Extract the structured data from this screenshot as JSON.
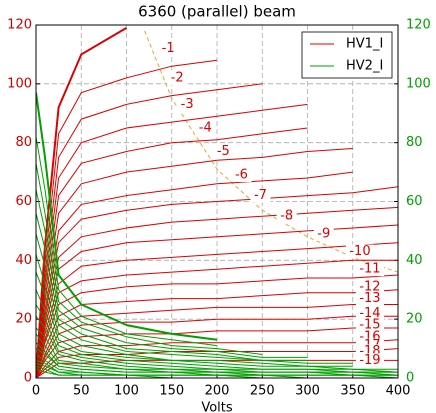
{
  "chart_data": {
    "type": "line",
    "title": "6360 (parallel) beam",
    "xlabel": "Volts",
    "x": [
      0,
      10,
      25,
      50,
      100,
      150,
      200,
      250,
      300,
      350,
      400
    ],
    "xlim": [
      0,
      400
    ],
    "xticks": [
      0,
      50,
      100,
      150,
      200,
      250,
      300,
      350,
      400
    ],
    "ylim": [
      0,
      120
    ],
    "yticks": [
      0,
      20,
      40,
      60,
      80,
      100,
      120
    ],
    "y2lim": [
      0,
      120
    ],
    "y2ticks": [
      0,
      20,
      40,
      60,
      80,
      100,
      120
    ],
    "ytick_color": "#cc0000",
    "y2tick_color": "#00a000",
    "grid": true,
    "legend": "upper right",
    "series": [
      {
        "name": "HV1_I",
        "color": "#dd0000",
        "values": [
          [
            0,
            45,
            92,
            110,
            119,
            null,
            null,
            null,
            null,
            null,
            null
          ],
          [
            0,
            39,
            83,
            97,
            102,
            106,
            108,
            null,
            null,
            null,
            null
          ],
          [
            0,
            35,
            75,
            88,
            93,
            96,
            98,
            100,
            null,
            null,
            null
          ],
          [
            0,
            32,
            68,
            80,
            85,
            87,
            89,
            91,
            93,
            null,
            null
          ],
          [
            0,
            29,
            62,
            73,
            77,
            80,
            81,
            83,
            85,
            null,
            null
          ],
          [
            0,
            26,
            56,
            66,
            70,
            72,
            74,
            75,
            77,
            78,
            null
          ],
          [
            0,
            23,
            50,
            59,
            62,
            64,
            66,
            67,
            68,
            70,
            null
          ],
          [
            0,
            21,
            46,
            54,
            57,
            59,
            60,
            61,
            62,
            63,
            65
          ],
          [
            0,
            19,
            41,
            48,
            51,
            53,
            54,
            55,
            56,
            57,
            58
          ],
          [
            0,
            17,
            37,
            43,
            46,
            47,
            48,
            49,
            50,
            51,
            52
          ],
          [
            0,
            15,
            32,
            38,
            40,
            41,
            42,
            43,
            44,
            45,
            46
          ],
          [
            0,
            13,
            29,
            33,
            35,
            36,
            37,
            38,
            39,
            40,
            40
          ],
          [
            0,
            12,
            25,
            29,
            31,
            32,
            32,
            33,
            34,
            34,
            35
          ],
          [
            0,
            10,
            21,
            25,
            26,
            27,
            27,
            28,
            29,
            29,
            30
          ],
          [
            0,
            8,
            18,
            21,
            22,
            23,
            24,
            24,
            24,
            25,
            25
          ],
          [
            0,
            7,
            15,
            18,
            19,
            19,
            20,
            20,
            20,
            21,
            21
          ],
          [
            0,
            6,
            12,
            14,
            15,
            15,
            16,
            16,
            16,
            17,
            17
          ],
          [
            0,
            4,
            9,
            11,
            11,
            12,
            12,
            12,
            12,
            12,
            13
          ],
          [
            0,
            3,
            7,
            8,
            8,
            9,
            9,
            9,
            9,
            9,
            10
          ],
          [
            0,
            2,
            5,
            5,
            6,
            6,
            6,
            6,
            6,
            6,
            6
          ]
        ]
      },
      {
        "name": "HV2_I",
        "color": "#00a000",
        "values": [
          [
            97,
            75,
            35,
            25,
            18,
            15,
            13,
            null,
            null,
            null,
            null
          ],
          [
            82,
            64,
            30,
            21,
            15,
            13,
            11,
            null,
            null,
            null,
            null
          ],
          [
            73,
            56,
            26,
            19,
            14,
            11,
            10,
            8,
            null,
            null,
            null
          ],
          [
            64,
            50,
            23,
            17,
            12,
            10,
            9,
            7,
            7,
            null,
            null
          ],
          [
            56,
            44,
            20,
            15,
            10,
            9,
            8,
            6,
            6,
            null,
            null
          ],
          [
            49,
            38,
            18,
            13,
            9,
            8,
            7,
            6,
            5,
            5,
            null
          ],
          [
            42,
            32,
            15,
            11,
            8,
            6,
            6,
            5,
            4,
            4,
            null
          ],
          [
            36,
            28,
            13,
            9,
            7,
            6,
            5,
            4,
            4,
            3,
            3
          ],
          [
            30,
            23,
            11,
            8,
            6,
            5,
            4,
            3,
            3,
            3,
            2
          ],
          [
            25,
            20,
            9,
            7,
            5,
            4,
            3,
            3,
            3,
            2,
            2
          ],
          [
            21,
            17,
            8,
            6,
            4,
            3,
            3,
            2,
            2,
            2,
            2
          ],
          [
            17,
            14,
            6,
            5,
            3,
            3,
            2,
            2,
            2,
            2,
            1
          ],
          [
            15,
            11,
            5,
            4,
            3,
            2,
            2,
            2,
            2,
            1,
            1
          ],
          [
            12,
            9,
            4,
            3,
            2,
            2,
            2,
            1,
            1,
            1,
            1
          ],
          [
            10,
            8,
            4,
            3,
            2,
            2,
            1,
            1,
            1,
            1,
            1
          ],
          [
            8,
            6,
            3,
            2,
            1,
            1,
            1,
            1,
            1,
            1,
            1
          ],
          [
            6,
            5,
            2,
            2,
            1,
            1,
            1,
            1,
            1,
            1,
            0
          ],
          [
            5,
            4,
            2,
            1,
            1,
            1,
            1,
            1,
            0,
            0,
            0
          ],
          [
            4,
            3,
            1,
            1,
            1,
            1,
            1,
            0,
            0,
            0,
            0
          ],
          [
            3,
            2,
            1,
            1,
            1,
            0,
            0,
            0,
            0,
            0,
            0
          ]
        ]
      }
    ],
    "limit_curve": {
      "color": "#f0a030",
      "x": [
        120,
        150,
        200,
        250,
        300,
        350,
        400
      ],
      "values": [
        118,
        95,
        71,
        57,
        48,
        41,
        36
      ]
    },
    "annotations": [
      {
        "text": "-1",
        "x": 146,
        "y": 112
      },
      {
        "text": "-2",
        "x": 156,
        "y": 102
      },
      {
        "text": "-3",
        "x": 167,
        "y": 93
      },
      {
        "text": "-4",
        "x": 187,
        "y": 85
      },
      {
        "text": "-5",
        "x": 207,
        "y": 77
      },
      {
        "text": "-6",
        "x": 227,
        "y": 69
      },
      {
        "text": "-7",
        "x": 248,
        "y": 62
      },
      {
        "text": "-8",
        "x": 277,
        "y": 55
      },
      {
        "text": "-9",
        "x": 318,
        "y": 49
      },
      {
        "text": "-10",
        "x": 358,
        "y": 43
      },
      {
        "text": "-11",
        "x": 369,
        "y": 37
      },
      {
        "text": "-12",
        "x": 369,
        "y": 31
      },
      {
        "text": "-13",
        "x": 369,
        "y": 27
      },
      {
        "text": "-14",
        "x": 369,
        "y": 22
      },
      {
        "text": "-15",
        "x": 369,
        "y": 18
      },
      {
        "text": "-16",
        "x": 369,
        "y": 14
      },
      {
        "text": "-17",
        "x": 369,
        "y": 11
      },
      {
        "text": "-18",
        "x": 369,
        "y": 9
      },
      {
        "text": "-19",
        "x": 369,
        "y": 6
      }
    ]
  }
}
